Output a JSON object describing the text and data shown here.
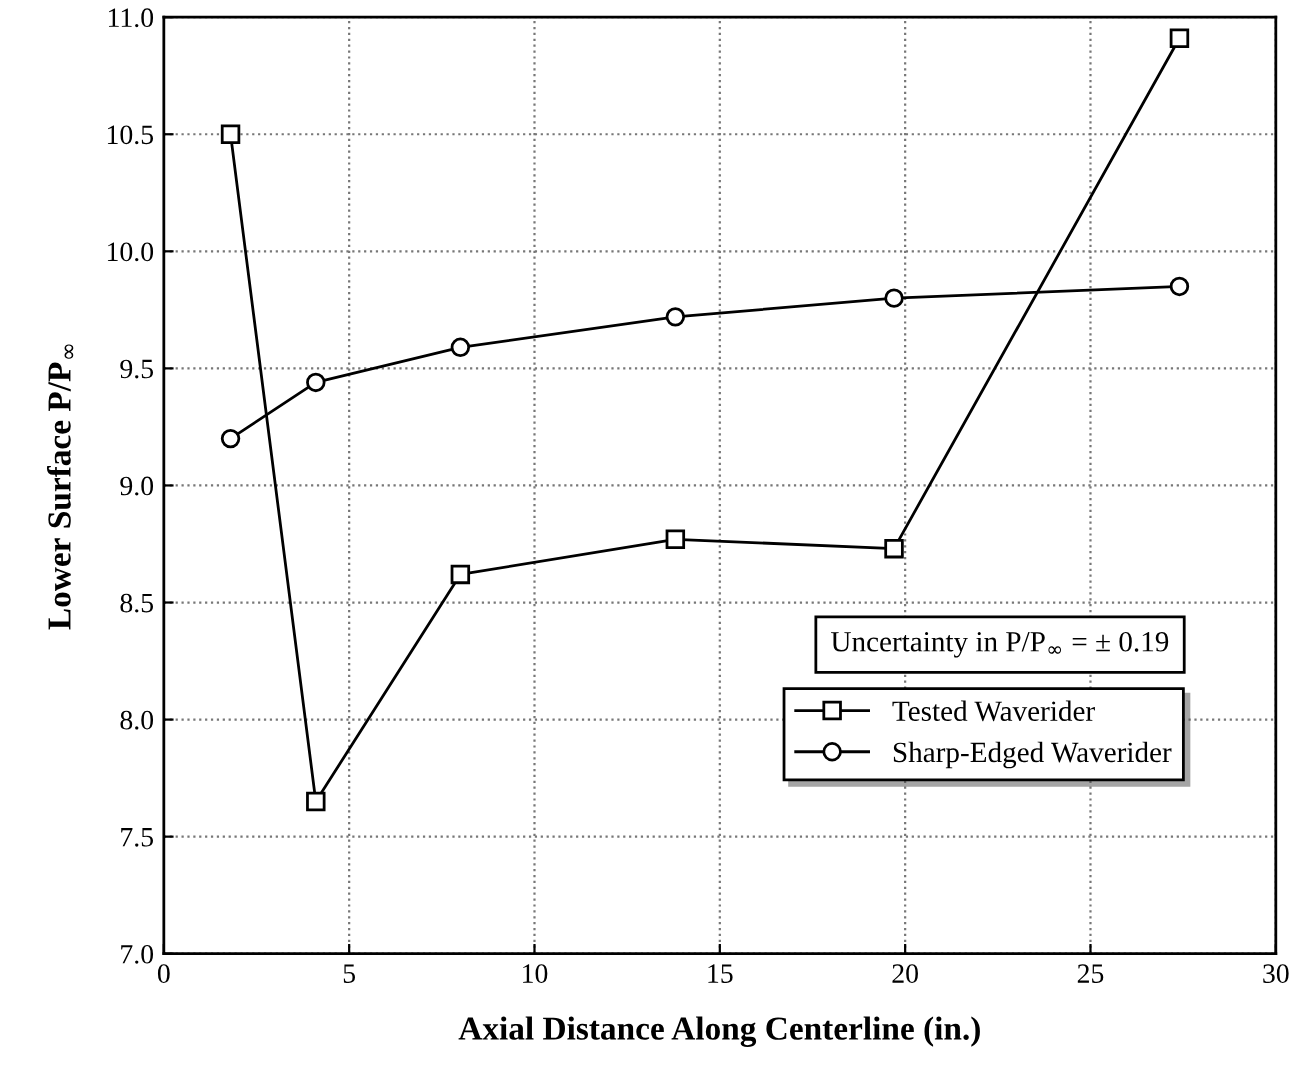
{
  "chart_data": {
    "type": "line",
    "xlabel": "Axial Distance Along Centerline (in.)",
    "ylabel": "Lower Surface P/P$_{∞}$",
    "x": [
      1.8,
      4.1,
      8.0,
      13.8,
      19.7,
      27.4
    ],
    "series": [
      {
        "name": "Tested Waverider",
        "color": "#000000",
        "marker": "square",
        "values": [
          10.5,
          7.65,
          8.62,
          8.77,
          8.73,
          10.91
        ]
      },
      {
        "name": "Sharp-Edged Waverider",
        "color": "#000000",
        "marker": "circle",
        "values": [
          9.2,
          9.44,
          9.59,
          9.72,
          9.8,
          9.85
        ]
      }
    ],
    "xlim": [
      0,
      30
    ],
    "xticks": [
      0,
      5,
      10,
      15,
      20,
      25,
      30
    ],
    "ylim": [
      7.0,
      11.0
    ],
    "yticks": [
      {
        "value": 7.0,
        "label": "7.0"
      },
      {
        "value": 7.5,
        "label": "7.5"
      },
      {
        "value": 8.0,
        "label": "8.0"
      },
      {
        "value": 8.5,
        "label": "8.5"
      },
      {
        "value": 9.0,
        "label": "9.0"
      },
      {
        "value": 9.5,
        "label": "9.5"
      },
      {
        "value": 10.0,
        "label": "10.0"
      },
      {
        "value": 10.5,
        "label": "10.5"
      },
      {
        "value": 11.0,
        "label": "11.0"
      }
    ],
    "grid": true,
    "legend": "bottom right",
    "line_style": "solid",
    "annotations": [
      "Uncertainty in P/P$_{∞}$ = ± 0.19"
    ]
  }
}
